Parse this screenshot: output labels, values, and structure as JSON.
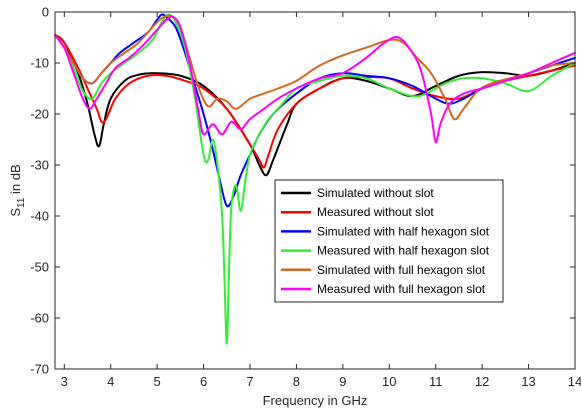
{
  "chart_data": {
    "type": "line",
    "xlabel": "Frequency in GHz",
    "ylabel": "S",
    "ylabel_sub": "11",
    "ylabel_rest": " in dB",
    "xlim": [
      2.8,
      14
    ],
    "ylim": [
      -70,
      0
    ],
    "xticks": [
      3,
      4,
      5,
      6,
      7,
      8,
      9,
      10,
      11,
      12,
      13,
      14
    ],
    "yticks": [
      0,
      -10,
      -20,
      -30,
      -40,
      -50,
      -60,
      -70
    ],
    "grid": false,
    "legend_position": "lower-right",
    "series": [
      {
        "name": "Simulated without slot",
        "color": "#000000",
        "x": [
          2.8,
          3.0,
          3.3,
          3.5,
          3.65,
          3.75,
          3.85,
          4.0,
          4.3,
          4.6,
          5.0,
          5.5,
          6.0,
          6.5,
          7.0,
          7.2,
          7.35,
          7.5,
          7.8,
          8.0,
          8.5,
          9.0,
          9.5,
          10.0,
          10.5,
          11.0,
          11.5,
          12.0,
          12.5,
          13.0,
          13.5,
          14.0
        ],
        "y": [
          -4.5,
          -6,
          -12,
          -18,
          -24,
          -26.3,
          -22,
          -17,
          -13.5,
          -12.3,
          -12,
          -12.5,
          -14.5,
          -19,
          -26,
          -30,
          -32,
          -29,
          -22,
          -18,
          -15,
          -13,
          -13.5,
          -15,
          -16.5,
          -14.5,
          -12.5,
          -11.8,
          -12,
          -12.5,
          -11.5,
          -10
        ]
      },
      {
        "name": "Measured without slot",
        "color": "#ff0000",
        "x": [
          2.8,
          3.0,
          3.3,
          3.5,
          3.7,
          3.8,
          3.9,
          4.1,
          4.4,
          4.8,
          5.2,
          5.6,
          6.0,
          6.5,
          7.0,
          7.2,
          7.3,
          7.4,
          7.6,
          8.0,
          8.5,
          9.0,
          9.5,
          10.0,
          10.5,
          11.0,
          11.5,
          12.0,
          12.5,
          13.0,
          13.5,
          14.0
        ],
        "y": [
          -4.5,
          -6,
          -11,
          -15,
          -19,
          -21.5,
          -21,
          -17,
          -14,
          -12.5,
          -12.5,
          -13.5,
          -15,
          -19,
          -26,
          -29,
          -30.5,
          -28,
          -23,
          -18,
          -15,
          -13,
          -12.8,
          -13,
          -15,
          -16.5,
          -17,
          -15,
          -13.5,
          -12.5,
          -11.5,
          -10.5
        ]
      },
      {
        "name": "Simulated with half hexagon slot",
        "color": "#0000ff",
        "x": [
          2.8,
          3.0,
          3.2,
          3.4,
          3.6,
          3.8,
          4.0,
          4.2,
          4.5,
          4.8,
          5.0,
          5.1,
          5.2,
          5.4,
          5.6,
          5.8,
          6.0,
          6.2,
          6.35,
          6.5,
          6.65,
          6.8,
          7.0,
          7.2,
          7.5,
          8.0,
          8.5,
          9.0,
          9.5,
          10.0,
          10.5,
          11.0,
          11.3,
          11.6,
          12.0,
          12.5,
          13.0,
          13.5,
          14.0
        ],
        "y": [
          -4.5,
          -7,
          -10,
          -13,
          -14,
          -12,
          -10,
          -8,
          -6,
          -4,
          -1.5,
          -0.5,
          -1,
          -3,
          -8,
          -14,
          -20,
          -27,
          -33,
          -38,
          -36,
          -32,
          -28,
          -24,
          -20,
          -16,
          -13,
          -12,
          -12.5,
          -13,
          -14.5,
          -17,
          -18,
          -17,
          -15,
          -13.5,
          -12,
          -10.5,
          -9
        ]
      },
      {
        "name": "Measured with half hexagon slot",
        "color": "#33ee33",
        "x": [
          2.8,
          3.0,
          3.2,
          3.4,
          3.6,
          3.8,
          4.0,
          4.3,
          4.6,
          4.9,
          5.1,
          5.25,
          5.4,
          5.6,
          5.8,
          6.0,
          6.1,
          6.2,
          6.3,
          6.4,
          6.45,
          6.5,
          6.55,
          6.6,
          6.7,
          6.8,
          6.9,
          7.0,
          7.2,
          7.4,
          7.7,
          8.0,
          8.5,
          9.0,
          9.5,
          10.0,
          10.5,
          10.8,
          11.2,
          11.6,
          12.0,
          12.5,
          13.0,
          13.5,
          14.0
        ],
        "y": [
          -4.5,
          -7,
          -11,
          -15.5,
          -17,
          -14,
          -12,
          -10,
          -8,
          -5.5,
          -2,
          -0.5,
          -2,
          -7,
          -16,
          -28,
          -29,
          -25,
          -30,
          -40,
          -52,
          -65,
          -50,
          -38,
          -34,
          -39,
          -33,
          -28,
          -24,
          -21,
          -18,
          -15,
          -13.5,
          -12.5,
          -13,
          -15,
          -16.5,
          -16,
          -14,
          -13,
          -13,
          -14,
          -15.5,
          -12.5,
          -10
        ]
      },
      {
        "name": "Simulated with full hexagon slot",
        "color": "#d2691e",
        "x": [
          2.8,
          3.0,
          3.2,
          3.4,
          3.6,
          3.8,
          4.0,
          4.3,
          4.6,
          5.0,
          5.2,
          5.35,
          5.5,
          5.7,
          5.9,
          6.1,
          6.3,
          6.5,
          6.7,
          7.0,
          7.3,
          7.6,
          8.0,
          8.5,
          9.0,
          9.5,
          10.0,
          10.3,
          10.6,
          10.9,
          11.2,
          11.4,
          11.6,
          11.9,
          12.2,
          12.6,
          13.0,
          13.5,
          14.0
        ],
        "y": [
          -4.5,
          -7,
          -10,
          -13,
          -14,
          -12,
          -10,
          -8,
          -6,
          -2,
          -0.8,
          -1,
          -3,
          -9,
          -15,
          -18.5,
          -17,
          -17.5,
          -19,
          -17,
          -16,
          -15,
          -13.5,
          -10.5,
          -8.5,
          -7,
          -5.5,
          -6,
          -9,
          -12,
          -17,
          -21,
          -19,
          -15.5,
          -14,
          -13,
          -12,
          -10.5,
          -10
        ]
      },
      {
        "name": "Measured with full hexagon slot",
        "color": "#ff00ff",
        "x": [
          2.8,
          3.0,
          3.2,
          3.4,
          3.55,
          3.7,
          3.9,
          4.1,
          4.4,
          4.7,
          5.0,
          5.2,
          5.35,
          5.5,
          5.7,
          5.9,
          6.0,
          6.2,
          6.4,
          6.6,
          6.8,
          7.0,
          7.3,
          7.6,
          8.0,
          8.5,
          9.0,
          9.5,
          9.9,
          10.2,
          10.5,
          10.7,
          10.9,
          11.0,
          11.1,
          11.3,
          11.6,
          12.0,
          12.5,
          13.0,
          13.5,
          14.0
        ],
        "y": [
          -4.5,
          -7,
          -12,
          -17,
          -19,
          -17,
          -14,
          -11,
          -9,
          -6.5,
          -3.5,
          -1.5,
          -1,
          -3,
          -10,
          -20,
          -24,
          -22,
          -24,
          -21.5,
          -23,
          -21,
          -19,
          -17,
          -15,
          -13,
          -12,
          -9,
          -6,
          -5,
          -8,
          -12,
          -20,
          -25.5,
          -22,
          -18,
          -16,
          -15,
          -13.5,
          -12,
          -10,
          -8
        ]
      }
    ]
  }
}
